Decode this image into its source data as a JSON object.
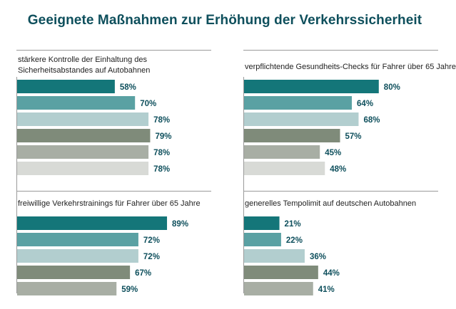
{
  "title": "Geeignete Maßnahmen zur Erhöhung der Verkehrssicherheit",
  "colors": [
    "#147679",
    "#5aa1a3",
    "#b2cecf",
    "#7f8b7a",
    "#a8aea4",
    "#d8dad6"
  ],
  "chart_data": [
    {
      "type": "bar",
      "title": "stärkere Kontrolle der Einhaltung des Sicherheitsabstandes auf Autobahnen",
      "values": [
        58,
        70,
        78,
        79,
        78,
        78
      ],
      "labels": [
        "58%",
        "70%",
        "78%",
        "79%",
        "78%",
        "78%"
      ],
      "xlim": [
        0,
        100
      ]
    },
    {
      "type": "bar",
      "title": "verpflichtende Gesundheits-Checks für Fahrer über 65 Jahre",
      "values": [
        80,
        64,
        68,
        57,
        45,
        48
      ],
      "labels": [
        "80%",
        "64%",
        "68%",
        "57%",
        "45%",
        "48%"
      ],
      "xlim": [
        0,
        100
      ]
    },
    {
      "type": "bar",
      "title": "freiwillige Verkehrstrainings für Fahrer über 65 Jahre",
      "values": [
        89,
        72,
        72,
        67,
        59
      ],
      "labels": [
        "89%",
        "72%",
        "72%",
        "67%",
        "59%"
      ],
      "xlim": [
        0,
        100
      ]
    },
    {
      "type": "bar",
      "title": "generelles Tempolimit auf deutschen Autobahnen",
      "values": [
        21,
        22,
        36,
        44,
        41
      ],
      "labels": [
        "21%",
        "22%",
        "36%",
        "44%",
        "41%"
      ],
      "xlim": [
        0,
        100
      ]
    }
  ]
}
